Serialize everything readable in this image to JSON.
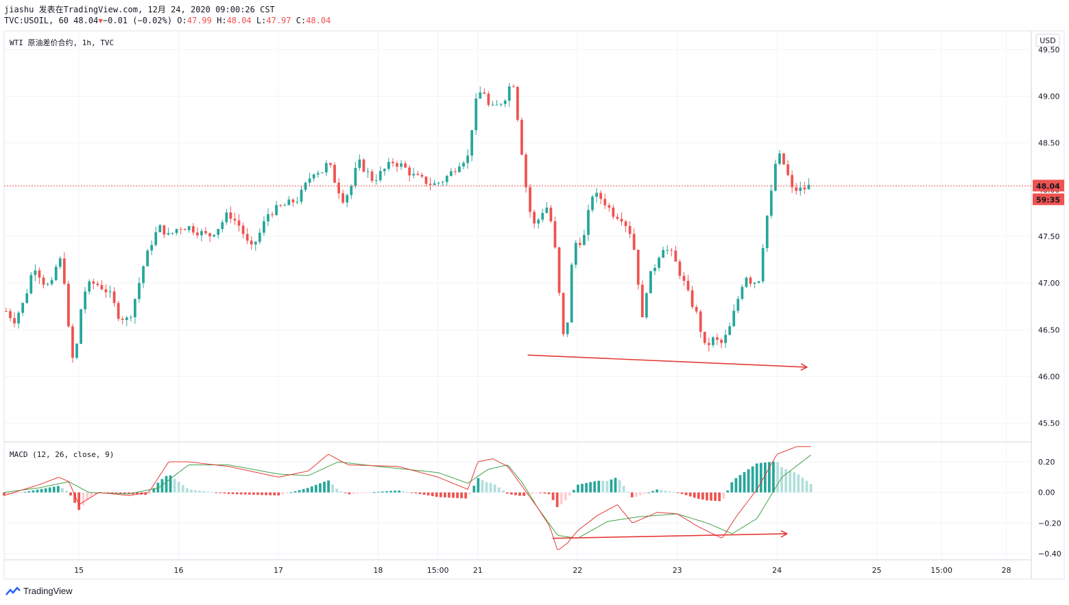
{
  "header": {
    "author_line": "jiashu 发表在TradingView.com, 12月 24, 2020 09:00:26 CST",
    "symbol": "TVC:USOIL, 60",
    "last": "48.04",
    "change": "−0.01 (−0.02%)",
    "o_label": "O:",
    "o": "47.99",
    "h_label": "H:",
    "h": "48.04",
    "l_label": "L:",
    "l": "47.97",
    "c_label": "C:",
    "c": "48.04"
  },
  "price_pane": {
    "title": "WTI 原油差价合约, 1h, TVC",
    "currency": "USD",
    "price_tag": "48.04",
    "countdown": "59:35"
  },
  "macd_pane": {
    "title": "MACD (12, 26, close, 9)"
  },
  "footer": {
    "brand": "TradingView"
  },
  "colors": {
    "up": "#26a69a",
    "down": "#ef5350",
    "grid": "#f0f3fa",
    "macd": "#e53935",
    "signal": "#43a047",
    "hist_up_strong": "#26a69a",
    "hist_up_weak": "#b2dfdb",
    "hist_dn_strong": "#ef5350",
    "hist_dn_weak": "#ffcdd2"
  },
  "chart_data": [
    {
      "type": "candlestick",
      "title": "WTI 原油差价合约, 1h, TVC",
      "ylim": [
        45.3,
        49.7
      ],
      "y_ticks": [
        "49.50",
        "49.00",
        "48.50",
        "48.00",
        "47.50",
        "47.00",
        "46.50",
        "46.00",
        "45.50"
      ],
      "x_ticks": [
        "15",
        "16",
        "17",
        "18",
        "15:00",
        "21",
        "22",
        "23",
        "24",
        "25",
        "15:00",
        "28"
      ],
      "x_tick_units": [
        1,
        2,
        3,
        4,
        4.6,
        5,
        6,
        7,
        8,
        9,
        9.65,
        10.3
      ],
      "x_range_units": [
        0.25,
        10.55
      ],
      "last_price": 48.04,
      "annotations": [
        {
          "type": "trendline-arrow",
          "from": [
            5.5,
            46.23
          ],
          "to": [
            8.3,
            46.1
          ]
        }
      ],
      "waypoints": [
        [
          0.27,
          46.7
        ],
        [
          0.35,
          46.6
        ],
        [
          0.45,
          46.8
        ],
        [
          0.55,
          47.2
        ],
        [
          0.65,
          47.0
        ],
        [
          0.72,
          46.95
        ],
        [
          0.8,
          47.3
        ],
        [
          0.86,
          47.0
        ],
        [
          0.91,
          46.3
        ],
        [
          0.96,
          46.1
        ],
        [
          1.0,
          46.6
        ],
        [
          1.05,
          46.9
        ],
        [
          1.12,
          47.0
        ],
        [
          1.2,
          46.98
        ],
        [
          1.3,
          46.9
        ],
        [
          1.4,
          46.65
        ],
        [
          1.5,
          46.6
        ],
        [
          1.58,
          46.9
        ],
        [
          1.65,
          47.2
        ],
        [
          1.75,
          47.5
        ],
        [
          1.82,
          47.6
        ],
        [
          1.9,
          47.5
        ],
        [
          2.0,
          47.6
        ],
        [
          2.1,
          47.6
        ],
        [
          2.2,
          47.55
        ],
        [
          2.3,
          47.5
        ],
        [
          2.4,
          47.6
        ],
        [
          2.5,
          47.75
        ],
        [
          2.62,
          47.6
        ],
        [
          2.72,
          47.35
        ],
        [
          2.8,
          47.5
        ],
        [
          2.9,
          47.75
        ],
        [
          3.0,
          47.8
        ],
        [
          3.1,
          47.85
        ],
        [
          3.2,
          47.9
        ],
        [
          3.35,
          48.2
        ],
        [
          3.45,
          48.2
        ],
        [
          3.5,
          48.3
        ],
        [
          3.58,
          48.05
        ],
        [
          3.65,
          47.9
        ],
        [
          3.72,
          48.0
        ],
        [
          3.8,
          48.3
        ],
        [
          3.88,
          48.2
        ],
        [
          3.95,
          48.1
        ],
        [
          4.05,
          48.2
        ],
        [
          4.15,
          48.3
        ],
        [
          4.25,
          48.25
        ],
        [
          4.35,
          48.15
        ],
        [
          4.45,
          48.1
        ],
        [
          4.55,
          48.05
        ],
        [
          4.65,
          48.1
        ],
        [
          4.75,
          48.2
        ],
        [
          4.82,
          48.3
        ],
        [
          4.9,
          48.35
        ],
        [
          4.97,
          48.9
        ],
        [
          5.05,
          49.1
        ],
        [
          5.12,
          48.85
        ],
        [
          5.2,
          48.9
        ],
        [
          5.28,
          49.0
        ],
        [
          5.35,
          49.2
        ],
        [
          5.42,
          48.6
        ],
        [
          5.48,
          48.05
        ],
        [
          5.55,
          47.6
        ],
        [
          5.62,
          47.7
        ],
        [
          5.68,
          47.85
        ],
        [
          5.75,
          47.6
        ],
        [
          5.8,
          47.1
        ],
        [
          5.85,
          46.4
        ],
        [
          5.9,
          46.6
        ],
        [
          5.95,
          47.3
        ],
        [
          6.0,
          47.5
        ],
        [
          6.05,
          47.4
        ],
        [
          6.1,
          47.7
        ],
        [
          6.15,
          47.95
        ],
        [
          6.25,
          47.9
        ],
        [
          6.35,
          47.75
        ],
        [
          6.45,
          47.7
        ],
        [
          6.55,
          47.5
        ],
        [
          6.6,
          47.1
        ],
        [
          6.65,
          46.6
        ],
        [
          6.7,
          47.0
        ],
        [
          6.78,
          47.2
        ],
        [
          6.85,
          47.4
        ],
        [
          6.95,
          47.3
        ],
        [
          7.05,
          47.05
        ],
        [
          7.12,
          46.85
        ],
        [
          7.2,
          46.65
        ],
        [
          7.28,
          46.3
        ],
        [
          7.35,
          46.4
        ],
        [
          7.45,
          46.35
        ],
        [
          7.52,
          46.5
        ],
        [
          7.6,
          46.8
        ],
        [
          7.68,
          47.1
        ],
        [
          7.75,
          47.0
        ],
        [
          7.82,
          47.05
        ],
        [
          7.88,
          47.6
        ],
        [
          7.95,
          48.0
        ],
        [
          8.0,
          48.4
        ],
        [
          8.08,
          48.25
        ],
        [
          8.15,
          48.0
        ],
        [
          8.25,
          48.0
        ],
        [
          8.33,
          48.04
        ]
      ],
      "candle_interval_units": 0.0417
    },
    {
      "type": "macd",
      "title": "MACD (12, 26, close, 9)",
      "ylim": [
        -0.44,
        0.33
      ],
      "y_ticks": [
        "0.20",
        "0.00",
        "−0.20",
        "−0.40"
      ],
      "macd": [
        [
          0.25,
          -0.02
        ],
        [
          0.6,
          0.05
        ],
        [
          0.8,
          0.1
        ],
        [
          0.9,
          0.07
        ],
        [
          1.0,
          -0.08
        ],
        [
          1.2,
          0.0
        ],
        [
          1.5,
          -0.02
        ],
        [
          1.7,
          0.0
        ],
        [
          1.9,
          0.2
        ],
        [
          2.1,
          0.2
        ],
        [
          2.5,
          0.17
        ],
        [
          3.0,
          0.1
        ],
        [
          3.3,
          0.14
        ],
        [
          3.5,
          0.25
        ],
        [
          3.7,
          0.18
        ],
        [
          4.2,
          0.17
        ],
        [
          4.6,
          0.1
        ],
        [
          4.9,
          0.02
        ],
        [
          5.0,
          0.2
        ],
        [
          5.15,
          0.22
        ],
        [
          5.3,
          0.17
        ],
        [
          5.6,
          -0.1
        ],
        [
          5.72,
          -0.22
        ],
        [
          5.8,
          -0.38
        ],
        [
          5.9,
          -0.33
        ],
        [
          6.0,
          -0.25
        ],
        [
          6.2,
          -0.15
        ],
        [
          6.4,
          -0.08
        ],
        [
          6.55,
          -0.2
        ],
        [
          6.8,
          -0.13
        ],
        [
          7.0,
          -0.14
        ],
        [
          7.2,
          -0.22
        ],
        [
          7.45,
          -0.3
        ],
        [
          7.6,
          -0.15
        ],
        [
          7.8,
          0.02
        ],
        [
          8.0,
          0.25
        ],
        [
          8.2,
          0.3
        ],
        [
          8.35,
          0.3
        ]
      ],
      "signal": [
        [
          0.25,
          0.0
        ],
        [
          0.6,
          0.03
        ],
        [
          0.9,
          0.07
        ],
        [
          1.1,
          0.0
        ],
        [
          1.5,
          -0.01
        ],
        [
          1.8,
          0.03
        ],
        [
          2.1,
          0.18
        ],
        [
          2.5,
          0.18
        ],
        [
          3.0,
          0.12
        ],
        [
          3.3,
          0.11
        ],
        [
          3.6,
          0.2
        ],
        [
          4.0,
          0.17
        ],
        [
          4.6,
          0.13
        ],
        [
          4.9,
          0.06
        ],
        [
          5.1,
          0.15
        ],
        [
          5.3,
          0.18
        ],
        [
          5.45,
          0.06
        ],
        [
          5.6,
          -0.1
        ],
        [
          5.8,
          -0.28
        ],
        [
          6.0,
          -0.3
        ],
        [
          6.3,
          -0.19
        ],
        [
          6.6,
          -0.16
        ],
        [
          7.0,
          -0.14
        ],
        [
          7.3,
          -0.2
        ],
        [
          7.55,
          -0.27
        ],
        [
          7.8,
          -0.17
        ],
        [
          8.05,
          0.1
        ],
        [
          8.35,
          0.25
        ]
      ],
      "annotations": [
        {
          "type": "trendline-arrow",
          "from": [
            5.75,
            -0.3
          ],
          "to": [
            8.1,
            -0.27
          ]
        }
      ]
    }
  ]
}
